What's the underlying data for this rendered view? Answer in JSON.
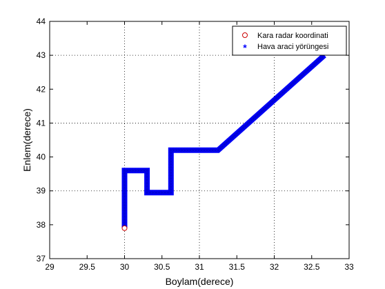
{
  "chart_data": {
    "type": "scatter",
    "xlabel": "Boylam(derece)",
    "ylabel": "Enlem(derece)",
    "xlim": [
      29,
      33
    ],
    "ylim": [
      37,
      44
    ],
    "xticks": [
      "29",
      "29.5",
      "30",
      "30.5",
      "31",
      "31.5",
      "32",
      "32.5",
      "33"
    ],
    "yticks": [
      "37",
      "38",
      "39",
      "40",
      "41",
      "42",
      "43",
      "44"
    ],
    "grid": "dotted at x=30, x=31, x=32, y=39, y=41, y=43",
    "legend_position": "top-right",
    "series": [
      {
        "name": "Kara radar koordinati",
        "marker": "circle",
        "color": "#cc0000",
        "points": [
          [
            30.0,
            37.9
          ]
        ]
      },
      {
        "name": "Hava araci yörüngesi",
        "marker": "asterisk",
        "color": "#0000ff",
        "path": [
          [
            30.0,
            37.9
          ],
          [
            30.0,
            39.6
          ],
          [
            30.3,
            39.6
          ],
          [
            30.3,
            38.95
          ],
          [
            30.62,
            38.95
          ],
          [
            30.62,
            40.2
          ],
          [
            31.25,
            40.2
          ],
          [
            32.67,
            43.0
          ]
        ]
      }
    ]
  }
}
